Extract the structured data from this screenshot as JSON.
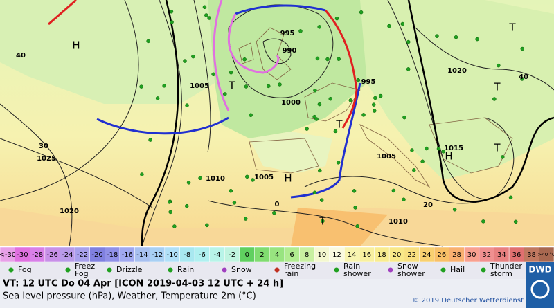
{
  "map": {
    "labels": [
      "H",
      "40",
      "T",
      "1005",
      "995",
      "990",
      "1000",
      "995",
      "1020",
      "T",
      "T",
      "40",
      "1015",
      "H",
      "T",
      "30",
      "1025",
      "1010",
      "1005",
      "H",
      "T",
      "1005",
      "1020",
      "T",
      "1010",
      "20",
      "0"
    ]
  },
  "color_scale": {
    "cells": [
      {
        "label": "<-30",
        "color": "#e8a0e8"
      },
      {
        "label": "-30",
        "color": "#e070e0"
      },
      {
        "label": "-28",
        "color": "#d880e8"
      },
      {
        "label": "-26",
        "color": "#c890e8"
      },
      {
        "label": "-24",
        "color": "#b89ae8"
      },
      {
        "label": "-22",
        "color": "#a8a0ec"
      },
      {
        "label": "-20",
        "color": "#8080e0"
      },
      {
        "label": "-18",
        "color": "#9090e8"
      },
      {
        "label": "-16",
        "color": "#a0a8f0"
      },
      {
        "label": "-14",
        "color": "#a8c0f0"
      },
      {
        "label": "-12",
        "color": "#a8d0f4"
      },
      {
        "label": "-10",
        "color": "#b0e0f8"
      },
      {
        "label": "-8",
        "color": "#a8e8f0"
      },
      {
        "label": "-6",
        "color": "#b0f0f0"
      },
      {
        "label": "-4",
        "color": "#b8f4e8"
      },
      {
        "label": "-2",
        "color": "#c0f4e0"
      },
      {
        "label": "0",
        "color": "#60d060"
      },
      {
        "label": "2",
        "color": "#80dc70"
      },
      {
        "label": "4",
        "color": "#98e480"
      },
      {
        "label": "6",
        "color": "#b0ec90"
      },
      {
        "label": "8",
        "color": "#c8f0a0"
      },
      {
        "label": "10",
        "color": "#f4f8d0"
      },
      {
        "label": "12",
        "color": "#fafae0"
      },
      {
        "label": "14",
        "color": "#f8f4b0"
      },
      {
        "label": "16",
        "color": "#f8f0a0"
      },
      {
        "label": "18",
        "color": "#f8ec90"
      },
      {
        "label": "20",
        "color": "#f8e888"
      },
      {
        "label": "22",
        "color": "#f8e080"
      },
      {
        "label": "24",
        "color": "#f8d070"
      },
      {
        "label": "26",
        "color": "#f8c068"
      },
      {
        "label": "28",
        "color": "#f8b070"
      },
      {
        "label": "30",
        "color": "#f8a090"
      },
      {
        "label": "32",
        "color": "#f09090"
      },
      {
        "label": "34",
        "color": "#e88080"
      },
      {
        "label": "36",
        "color": "#e07070"
      },
      {
        "label": "38",
        "color": "#c07860"
      },
      {
        "label": ">40 °C",
        "color": "#a86850"
      }
    ]
  },
  "legend": [
    {
      "lines": [
        "Fog"
      ]
    },
    {
      "lines": [
        "Freez",
        "Fog"
      ]
    },
    {
      "lines": [
        "Drizzle"
      ]
    },
    {
      "lines": [
        "Rain"
      ]
    },
    {
      "lines": [
        "Snow"
      ]
    },
    {
      "lines": [
        "Freezing",
        "rain"
      ]
    },
    {
      "lines": [
        "Rain",
        "shower"
      ]
    },
    {
      "lines": [
        "Snow",
        "shower"
      ]
    },
    {
      "lines": [
        "Hail"
      ]
    },
    {
      "lines": [
        "Thunder",
        "storm"
      ]
    }
  ],
  "footer": {
    "valid_time": "VT: 12 UTC Do  04 Apr [ICON 2019-04-03  12 UTC + 24 h]",
    "description": "Sea level pressure (hPa), Weather, Temperature 2m (°C)",
    "copyright": "© 2019 Deutscher Wetterdienst",
    "logo": "DWD"
  }
}
